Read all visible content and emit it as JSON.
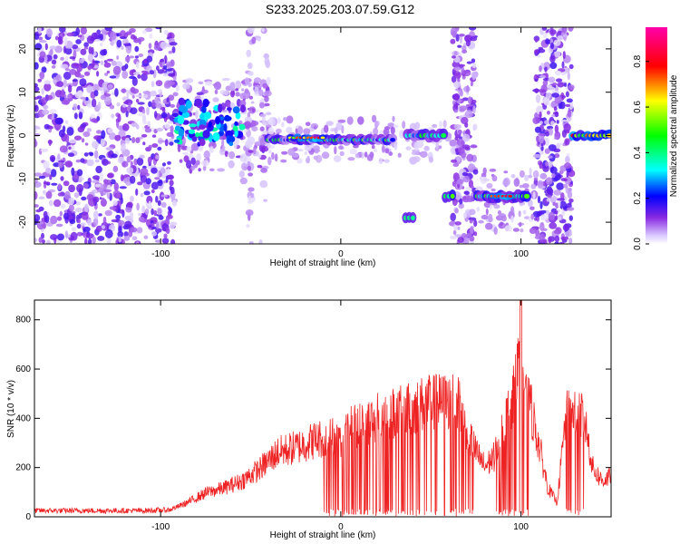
{
  "title": "S233.2025.203.07.59.G12",
  "colorbar": {
    "label": "Normalized spectral amplitude",
    "ticks": [
      "0.0",
      "0.2",
      "0.4",
      "0.6",
      "0.8"
    ],
    "range": [
      0,
      0.95
    ]
  },
  "chart_data": [
    {
      "type": "heatmap",
      "xlabel": "Height of straight line (km)",
      "ylabel": "Frequency (Hz)",
      "xlim": [
        -170,
        150
      ],
      "ylim": [
        -25,
        25
      ],
      "xticks": [
        -100,
        0,
        100
      ],
      "yticks": [
        -20,
        -10,
        0,
        10,
        20
      ],
      "colorscale": "rainbow (white-violet-blue-cyan-green-yellow-red-magenta)",
      "features": [
        {
          "x_range": [
            -170,
            -92
          ],
          "freq_range": [
            -25,
            25
          ],
          "level": "low, broadband noise"
        },
        {
          "x_range": [
            -92,
            -55
          ],
          "freq_range": [
            -2,
            8
          ],
          "level": "moderate (0.2-0.45)"
        },
        {
          "x_range": [
            -40,
            30
          ],
          "freq_center": -1,
          "level": "0.3-0.9 narrowband tone"
        },
        {
          "x_range": [
            -28,
            -10
          ],
          "freq_center": -1,
          "level": "peak 0.9"
        },
        {
          "x_range": [
            36,
            40
          ],
          "freq_center": -19,
          "level": "0.3-0.5"
        },
        {
          "x_range": [
            37,
            57
          ],
          "freq_center": 0,
          "level": "0.3-0.5"
        },
        {
          "x_range": [
            58,
            62
          ],
          "freq_center": -14,
          "level": "0.5"
        },
        {
          "x_range": [
            62,
            75
          ],
          "freq_range": [
            -25,
            25
          ],
          "level": "low, broadband noise"
        },
        {
          "x_range": [
            76,
            104
          ],
          "freq_center": -14,
          "level": "0.3-0.9 narrowband tone"
        },
        {
          "x_range": [
            108,
            128
          ],
          "freq_range": [
            -25,
            25
          ],
          "level": "low, broadband noise"
        },
        {
          "x_range": [
            129,
            150
          ],
          "freq_center": 0,
          "level": "0.5-0.9 narrowband tone"
        }
      ]
    },
    {
      "type": "line",
      "xlabel": "Height of straight line (km)",
      "ylabel": "SNR (10 * v/v)",
      "xlim": [
        -170,
        150
      ],
      "ylim": [
        0,
        880
      ],
      "xticks": [
        -100,
        0,
        100
      ],
      "yticks": [
        0,
        200,
        400,
        600,
        800
      ],
      "color": "#ee2222",
      "series": [
        {
          "x": [
            -170,
            -150,
            -130,
            -110,
            -95,
            -85,
            -75,
            -65,
            -55,
            -45,
            -35,
            -25,
            -15,
            -5,
            0,
            5,
            15,
            25,
            35,
            45,
            55,
            65,
            70,
            75,
            80,
            85,
            90,
            95,
            98,
            100,
            102,
            105,
            110,
            115,
            120,
            125,
            130,
            135,
            140,
            145,
            150
          ],
          "y": [
            25,
            25,
            25,
            25,
            28,
            60,
            100,
            120,
            150,
            200,
            270,
            290,
            320,
            340,
            310,
            370,
            400,
            430,
            440,
            470,
            480,
            480,
            370,
            270,
            210,
            250,
            380,
            470,
            600,
            860,
            520,
            470,
            300,
            120,
            60,
            420,
            440,
            420,
            200,
            150,
            170
          ]
        }
      ]
    }
  ]
}
